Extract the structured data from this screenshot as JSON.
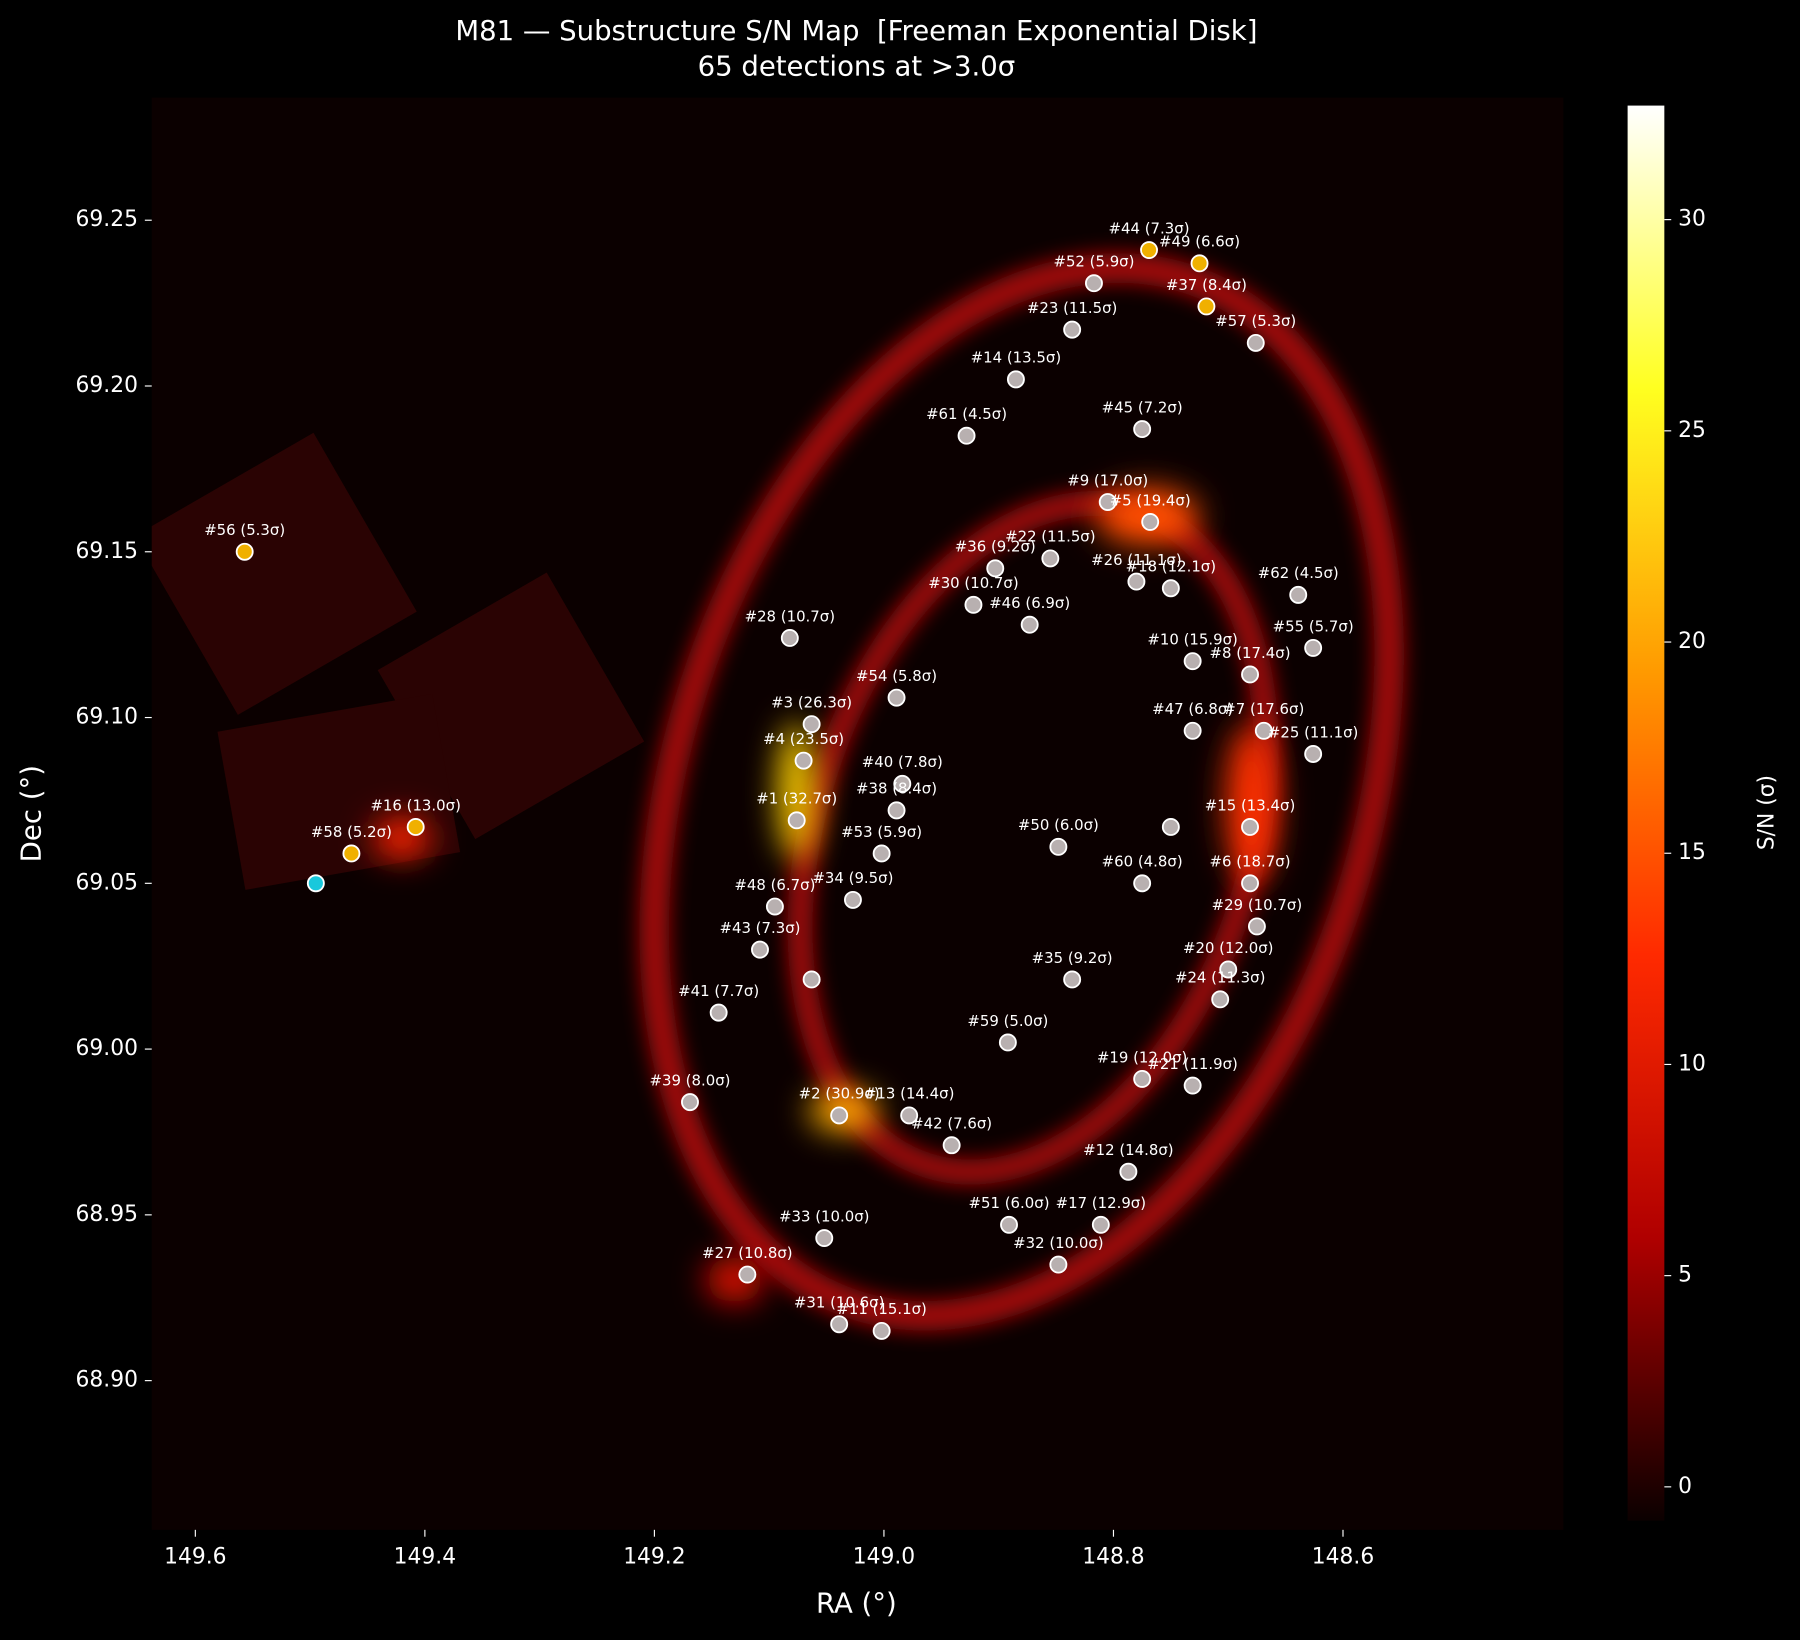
{
  "chart_data": {
    "type": "scatter",
    "title": "M81 — Substructure S/N Map  [Freeman Exponential Disk]",
    "subtitle": "65 detections at >3.0σ",
    "x_label": "RA (°)",
    "y_label": "Dec (°)",
    "xlim": [
      149.638,
      148.408
    ],
    "ylim": [
      68.855,
      69.287
    ],
    "xticks": [
      149.6,
      149.4,
      149.2,
      {
        "value": 149,
        "label": "149.0"
      },
      148.8,
      148.6
    ],
    "yticks": [
      69.25,
      {
        "value": 69.2,
        "label": "69.20"
      },
      69.15,
      {
        "value": 69.1,
        "label": "69.10"
      },
      69.05,
      {
        "value": 69,
        "label": "69.00"
      },
      68.95,
      {
        "value": 68.9,
        "label": "68.90"
      }
    ],
    "x": [
      148.769,
      148.725,
      148.817,
      148.719,
      148.836,
      148.676,
      148.885,
      148.928,
      148.775,
      148.805,
      148.768,
      148.903,
      148.855,
      148.78,
      148.75,
      148.639,
      148.922,
      148.873,
      149.082,
      148.626,
      148.731,
      148.681,
      148.989,
      149.063,
      148.731,
      148.669,
      148.626,
      149.07,
      148.984,
      148.989,
      149.076,
      148.681,
      148.848,
      149.002,
      148.775,
      148.681,
      149.095,
      149.027,
      148.675,
      149.108,
      148.7,
      148.836,
      148.707,
      149.144,
      148.892,
      148.775,
      148.731,
      149.169,
      149.039,
      148.978,
      148.941,
      148.787,
      148.891,
      148.811,
      149.052,
      148.848,
      149.119,
      149.039,
      149.002,
      149.557,
      149.408,
      149.464,
      149.063,
      148.75,
      149.495
    ],
    "y": [
      69.241,
      69.237,
      69.231,
      69.224,
      69.217,
      69.213,
      69.202,
      69.185,
      69.187,
      69.165,
      69.159,
      69.145,
      69.148,
      69.141,
      69.139,
      69.137,
      69.134,
      69.128,
      69.124,
      69.121,
      69.117,
      69.113,
      69.106,
      69.098,
      69.096,
      69.096,
      69.089,
      69.087,
      69.08,
      69.072,
      69.069,
      69.067,
      69.061,
      69.059,
      69.05,
      69.05,
      69.043,
      69.045,
      69.037,
      69.03,
      69.024,
      69.021,
      69.015,
      69.011,
      69.002,
      68.991,
      68.989,
      68.984,
      68.98,
      68.98,
      68.971,
      68.963,
      68.947,
      68.947,
      68.943,
      68.935,
      68.932,
      68.917,
      68.915,
      69.15,
      69.067,
      69.059,
      69.021,
      69.067,
      69.05
    ],
    "labels": [
      "#44 (7.3σ)",
      "#49 (6.6σ)",
      "#52 (5.9σ)",
      "#37 (8.4σ)",
      "#23 (11.5σ)",
      "#57 (5.3σ)",
      "#14 (13.5σ)",
      "#61 (4.5σ)",
      "#45 (7.2σ)",
      "#9 (17.0σ)",
      "#5 (19.4σ)",
      "#36 (9.2σ)",
      "#22 (11.5σ)",
      "#26 (11.1σ)",
      "#18 (12.1σ)",
      "#62 (4.5σ)",
      "#30 (10.7σ)",
      "#46 (6.9σ)",
      "#28 (10.7σ)",
      "#55 (5.7σ)",
      "#10 (15.9σ)",
      "#8 (17.4σ)",
      "#54 (5.8σ)",
      "#3 (26.3σ)",
      "#47 (6.8σ)",
      "#7 (17.6σ)",
      "#25 (11.1σ)",
      "#4 (23.5σ)",
      "#40 (7.8σ)",
      "#38 (8.4σ)",
      "#1 (32.7σ)",
      "#15 (13.4σ)",
      "#50 (6.0σ)",
      "#53 (5.9σ)",
      "#60 (4.8σ)",
      "#6 (18.7σ)",
      "#48 (6.7σ)",
      "#34 (9.5σ)",
      "#29 (10.7σ)",
      "#43 (7.3σ)",
      "#20 (12.0σ)",
      "#35 (9.2σ)",
      "#24 (11.3σ)",
      "#41 (7.7σ)",
      "#59 (5.0σ)",
      "#19 (12.0σ)",
      "#21 (11.9σ)",
      "#39 (8.0σ)",
      "#2 (30.9σ)",
      "#13 (14.4σ)",
      "#42 (7.6σ)",
      "#12 (14.8σ)",
      "#51 (6.0σ)",
      "#17 (12.9σ)",
      "#33 (10.0σ)",
      "#32 (10.0σ)",
      "#27 (10.8σ)",
      "#31 (10.6σ)",
      "#11 (15.1σ)",
      "#56 (5.3σ)",
      "#16 (13.0σ)",
      "#58 (5.2σ)",
      null,
      null,
      null
    ],
    "colors": [
      "#f0b000",
      "#f0b000",
      "#b8b0b0",
      "#f0b000",
      "#b8b0b0",
      "#b8b0b0",
      "#b8b0b0",
      "#b8b0b0",
      "#b8b0b0",
      "#b8b0b0",
      "#b8b0b0",
      "#b8b0b0",
      "#b8b0b0",
      "#b8b0b0",
      "#b8b0b0",
      "#b8b0b0",
      "#b8b0b0",
      "#b8b0b0",
      "#b8b0b0",
      "#b8b0b0",
      "#b8b0b0",
      "#b8b0b0",
      "#b8b0b0",
      "#b8b0b0",
      "#b8b0b0",
      "#b8b0b0",
      "#b8b0b0",
      "#b8b0b0",
      "#b8b0b0",
      "#b8b0b0",
      "#b8b0b0",
      "#b8b0b0",
      "#b8b0b0",
      "#b8b0b0",
      "#b8b0b0",
      "#b8b0b0",
      "#b8b0b0",
      "#b8b0b0",
      "#b8b0b0",
      "#b8b0b0",
      "#b8b0b0",
      "#b8b0b0",
      "#b8b0b0",
      "#b8b0b0",
      "#b8b0b0",
      "#b8b0b0",
      "#b8b0b0",
      "#b8b0b0",
      "#b8b0b0",
      "#b8b0b0",
      "#b8b0b0",
      "#b8b0b0",
      "#b8b0b0",
      "#b8b0b0",
      "#b8b0b0",
      "#b8b0b0",
      "#b8b0b0",
      "#b8b0b0",
      "#b8b0b0",
      "#f0b000",
      "#f0b000",
      "#f0b000",
      "#b8b0b0",
      "#b8b0b0",
      "#19c8dc"
    ],
    "colorbar": {
      "label": "S/N (σ)",
      "lim": [
        -0.8,
        32.7
      ],
      "ticks": [
        0,
        5,
        10,
        15,
        20,
        25,
        30
      ],
      "colors": [
        "#0b0000",
        "#b00000",
        "#ff2a00",
        "#ff9a00",
        "#ffff20",
        "#ffffff"
      ]
    }
  }
}
